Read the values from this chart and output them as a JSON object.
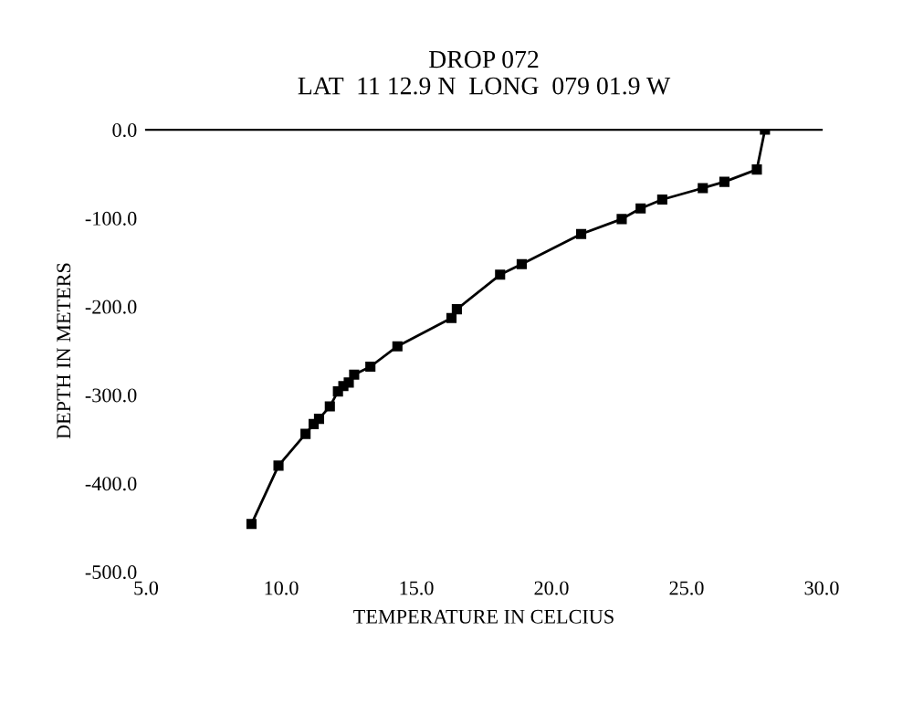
{
  "chart_data": {
    "type": "line",
    "title": "DROP 072\nLAT  11 12.9 N  LONG  079 01.9 W",
    "xlabel": "TEMPERATURE IN CELCIUS",
    "ylabel": "DEPTH IN METERS",
    "series": [
      {
        "color": "#000000",
        "x": [
          27.9,
          27.6,
          26.4,
          25.6,
          24.1,
          23.3,
          22.6,
          21.1,
          18.9,
          18.1,
          16.5,
          16.3,
          14.3,
          13.3,
          12.7,
          12.5,
          12.3,
          12.1,
          11.8,
          11.4,
          11.2,
          10.9,
          9.9,
          8.9
        ],
        "values": [
          0,
          -45,
          -59,
          -66,
          -79,
          -89,
          -101,
          -118,
          -152,
          -164,
          -203,
          -213,
          -245,
          -268,
          -277,
          -286,
          -290,
          -296,
          -313,
          -327,
          -333,
          -344,
          -380,
          -446
        ]
      }
    ],
    "xlim": [
      5,
      30
    ],
    "xticks": [
      {
        "value": 5,
        "label": "5.0"
      },
      {
        "value": 10,
        "label": "10.0"
      },
      {
        "value": 15,
        "label": "15.0"
      },
      {
        "value": 20,
        "label": "20.0"
      },
      {
        "value": 25,
        "label": "25.0"
      },
      {
        "value": 30,
        "label": "30.0"
      }
    ],
    "ylim": [
      -500,
      0
    ],
    "yticks": [
      {
        "value": 0,
        "label": "0.0"
      },
      {
        "value": -100,
        "label": "-100.0"
      },
      {
        "value": -200,
        "label": "-200.0"
      },
      {
        "value": -300,
        "label": "-300.0"
      },
      {
        "value": -400,
        "label": "-400.0"
      },
      {
        "value": -500,
        "label": "-500.0"
      }
    ],
    "marker": "square",
    "line_style": "solid",
    "grid": false,
    "legend": false
  }
}
